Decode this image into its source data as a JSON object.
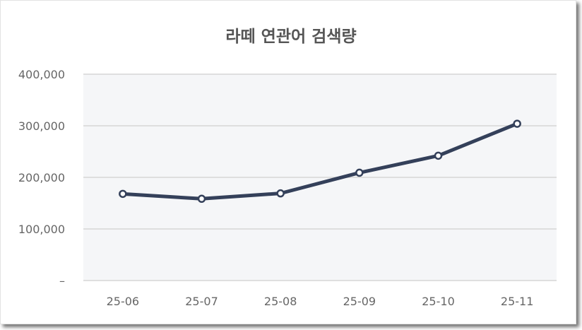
{
  "chart_data": {
    "type": "line",
    "title": "라떼 연관어 검색량",
    "categories": [
      "25-06",
      "25-07",
      "25-08",
      "25-09",
      "25-10",
      "25-11"
    ],
    "values": [
      168000,
      158500,
      169000,
      209000,
      242000,
      304000
    ],
    "ylim": [
      0,
      400000
    ],
    "yticks": [
      0,
      100000,
      200000,
      300000,
      400000
    ],
    "ytick_labels": [
      "–",
      "100,000",
      "200,000",
      "300,000",
      "400,000"
    ],
    "grid": true,
    "legend": "none",
    "colors": {
      "line": "#34405a",
      "plot_bg": "#f5f6f8",
      "grid": "#d6d6d6"
    }
  }
}
